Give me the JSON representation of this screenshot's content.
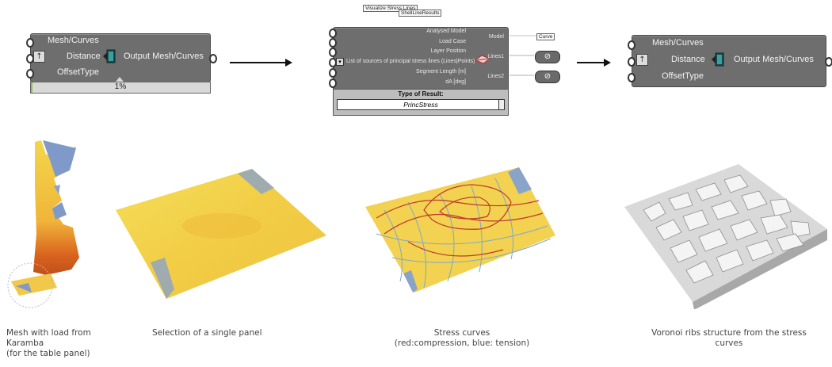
{
  "component1": {
    "inputs": [
      "Mesh/Curves",
      "Distance",
      "OffsetType"
    ],
    "output": "Output Mesh/Curves",
    "progress_label": "1%",
    "progress": 0.01
  },
  "karamba": {
    "tooltip1": "Visualize Stress Lines",
    "tooltip2": "ShellLineResults",
    "inputs": [
      "Analysed Model",
      "Load Case",
      "Layer Position",
      "List of sources of principal stress lines (Lines|Points)",
      "Segment Length [m]",
      "dA [deg]"
    ],
    "outputs": [
      "Model",
      "Lines1",
      "Lines2"
    ],
    "result_header": "Type of Result:",
    "result_value": "PrincStress",
    "curve_tag": "Curve"
  },
  "component2": {
    "inputs": [
      "Mesh/Curves",
      "Distance",
      "OffsetType"
    ],
    "output": "Output Mesh/Curves"
  },
  "captions": {
    "c1_line1": "Mesh with load from",
    "c1_line2": "Karamba",
    "c1_line3": "(for the table panel)",
    "c2": "Selection of a single panel",
    "c3_line1": "Stress curves",
    "c3_line2": "(red:compression, blue: tension)",
    "c4_line1": "Voronoi ribs structure from the stress",
    "c4_line2": "curves"
  },
  "colors": {
    "component_bg": "#6e6e6e",
    "mesh_yellow": "#f2d24a",
    "mesh_orange": "#e8a030",
    "mesh_blue": "#7f9ac8",
    "compression_red": "#c0392b",
    "tension_blue": "#7fa8c8"
  }
}
